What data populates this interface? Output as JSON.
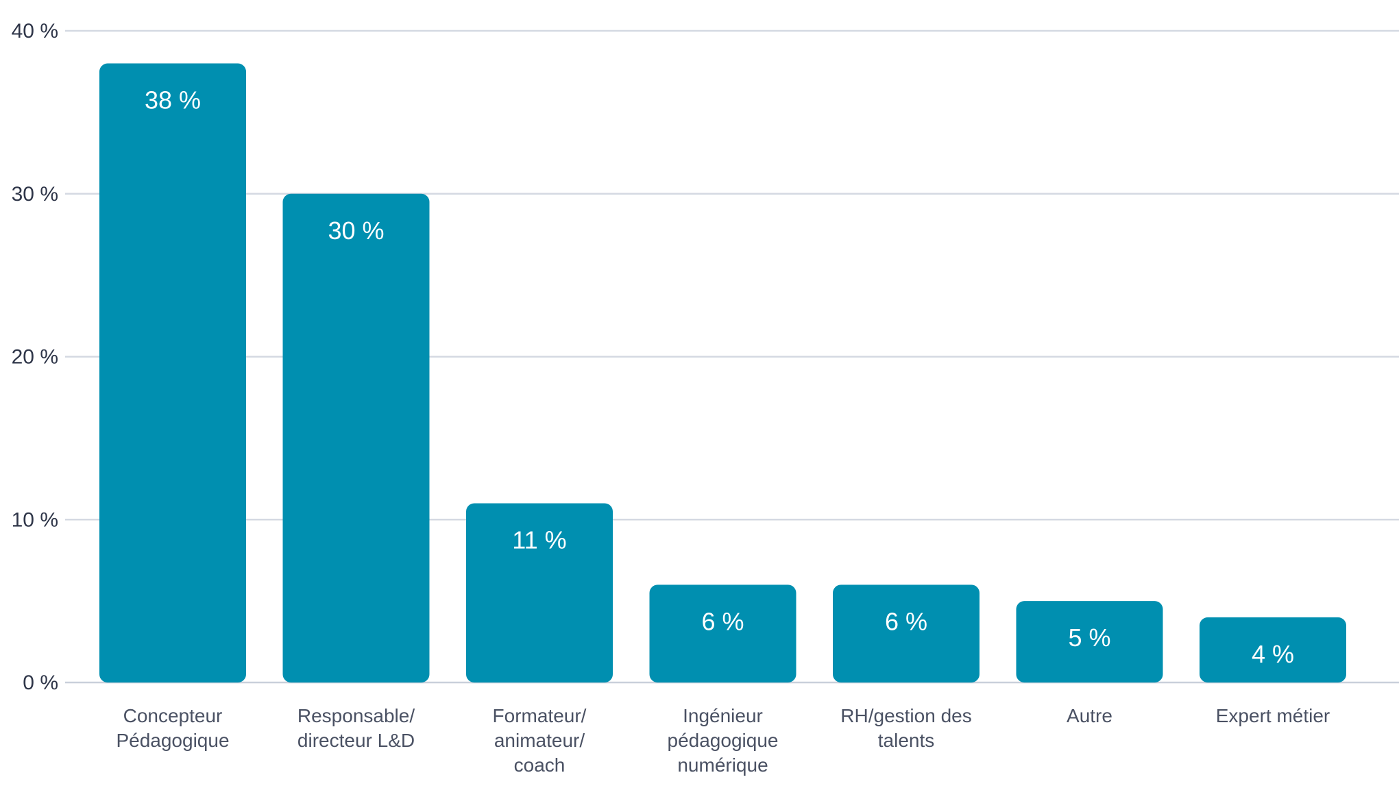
{
  "chart_data": {
    "type": "bar",
    "title": "",
    "xlabel": "",
    "ylabel": "",
    "ylim": [
      0,
      40
    ],
    "yticks": [
      0,
      10,
      20,
      30,
      40
    ],
    "ytick_labels": [
      "0 %",
      "10 %",
      "20 %",
      "30 %",
      "40 %"
    ],
    "grid": true,
    "bar_color": "#008fb0",
    "categories": [
      [
        "Concepteur",
        "Pédagogique"
      ],
      [
        "Responsable/",
        "directeur L&D"
      ],
      [
        "Formateur/",
        "animateur/",
        "coach"
      ],
      [
        "Ingénieur",
        "pédagogique",
        "numérique"
      ],
      [
        "RH/gestion des",
        "talents"
      ],
      [
        "Autre"
      ],
      [
        "Expert métier"
      ]
    ],
    "values": [
      38,
      30,
      11,
      6,
      6,
      5,
      4
    ],
    "data_labels": [
      "38 %",
      "30 %",
      "11 %",
      "6 %",
      "6 %",
      "5 %",
      "4 %"
    ]
  }
}
